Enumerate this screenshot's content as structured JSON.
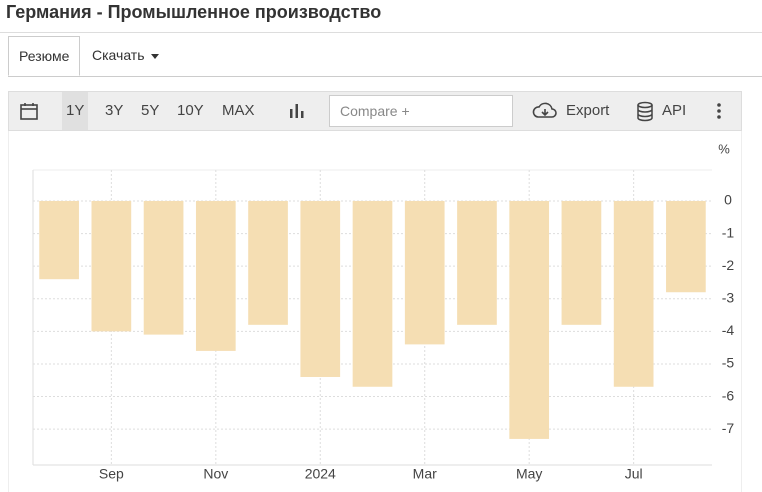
{
  "header": {
    "title": "Германия - Промышленное производство"
  },
  "tabs": [
    "Резюме",
    "Скачать"
  ],
  "toolbar": {
    "ranges": [
      "1Y",
      "3Y",
      "5Y",
      "10Y",
      "MAX"
    ],
    "compare": "Compare +",
    "export": "Export",
    "api": "API"
  },
  "chart_data": {
    "type": "bar",
    "y_label": "%",
    "categories": [
      null,
      "Sep",
      null,
      "Nov",
      null,
      "2024",
      null,
      "Mar",
      null,
      "May",
      null,
      "Jul",
      null
    ],
    "values": [
      -2.4,
      -4.0,
      -4.1,
      -4.6,
      -3.8,
      -5.4,
      -5.7,
      -4.4,
      -3.8,
      -7.3,
      -3.8,
      -5.7,
      -2.8
    ],
    "color": "#f5deb3",
    "ylim": [
      -8.1,
      0.95
    ],
    "yticks": [
      0,
      -1,
      -2,
      -3,
      -4,
      -5,
      -6,
      -7
    ],
    "grid": true
  }
}
